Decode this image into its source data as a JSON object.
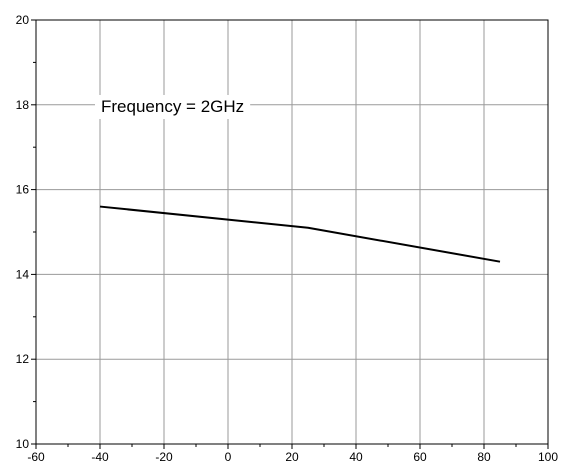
{
  "chart_data": {
    "type": "line",
    "title": "",
    "xlabel": "",
    "ylabel": "",
    "xlim": [
      -60,
      100
    ],
    "ylim": [
      10,
      20
    ],
    "xticks": [
      -60,
      -40,
      -20,
      0,
      20,
      40,
      60,
      80,
      100
    ],
    "yticks": [
      10,
      12,
      14,
      16,
      18,
      20
    ],
    "grid": true,
    "annotation": "Frequency = 2GHz",
    "series": [
      {
        "x": [
          -40,
          25,
          85
        ],
        "y": [
          15.6,
          15.1,
          14.3
        ],
        "color": "#000000"
      }
    ]
  }
}
